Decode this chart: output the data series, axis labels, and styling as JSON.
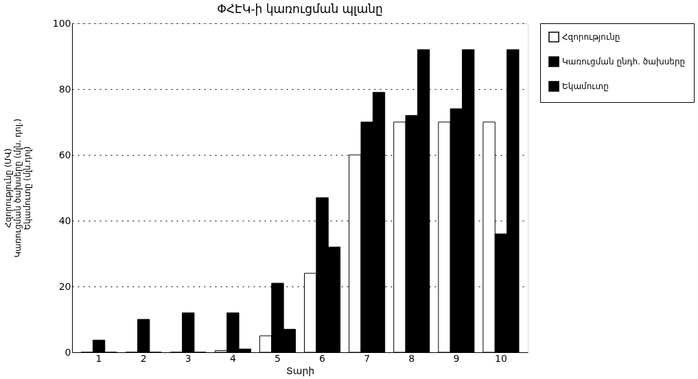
{
  "chart_data": {
    "type": "bar",
    "title": "ՓՀԷԿ-ի կառուցման պլանը",
    "xlabel": "Տարի",
    "ylabel": "Հզորությունը (ՄՎ)\nԿառուցման ծախսերը (մլն. դոլ.)\nԵկամուտը (մլն.դոլ)",
    "categories": [
      "1",
      "2",
      "3",
      "4",
      "5",
      "6",
      "7",
      "8",
      "9",
      "10"
    ],
    "series": [
      {
        "name": "Հզորությունը",
        "color": "#ffffff",
        "values": [
          0,
          0,
          0,
          0.5,
          5,
          24,
          60,
          70,
          70,
          70
        ]
      },
      {
        "name": "Կառուցման ընդհ. ծախսերը",
        "color": "#000000",
        "values": [
          3.7,
          10,
          12,
          12,
          21,
          47,
          70,
          72,
          74,
          36
        ]
      },
      {
        "name": "Եկամուտը",
        "color": "#000000",
        "values": [
          0,
          0,
          0,
          1,
          7,
          32,
          79,
          92,
          92,
          92
        ]
      }
    ],
    "ylim": [
      0,
      100
    ],
    "yticks": [
      0,
      20,
      40,
      60,
      80,
      100
    ],
    "grid": "y",
    "legend": "right"
  }
}
